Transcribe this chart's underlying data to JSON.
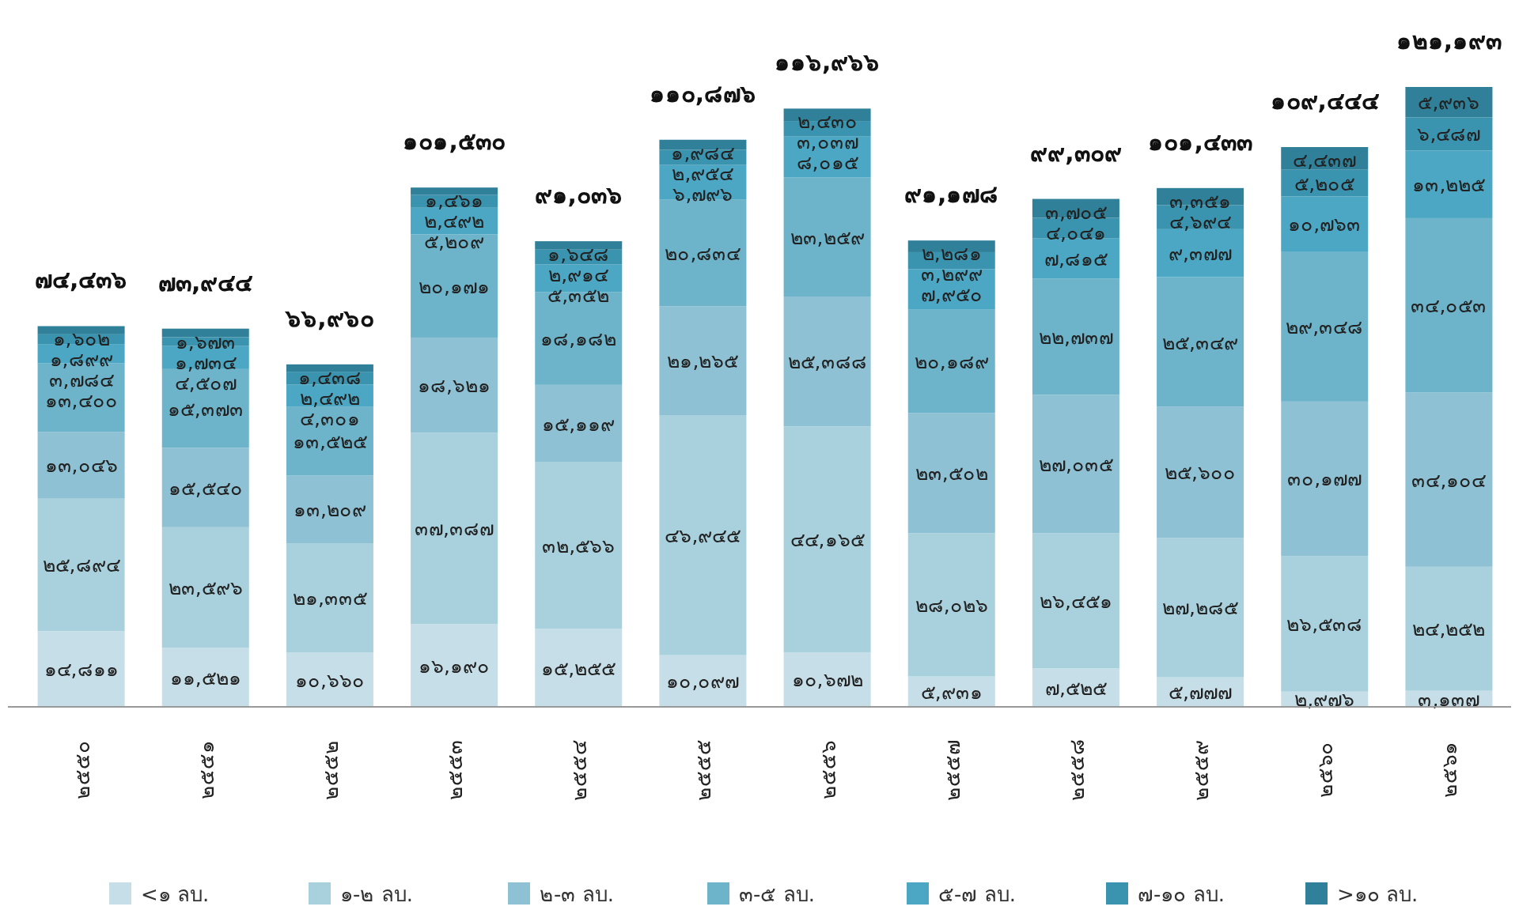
{
  "chart_data": {
    "type": "bar",
    "stacked": true,
    "legend": "bottom",
    "categories": [
      "๒๕๕๐",
      "๒๕๕๑",
      "๒๕๕๒",
      "๒๕๕๓",
      "๒๕๕๔",
      "๒๕๕๕",
      "๒๕๕๖",
      "๒๕๕๗",
      "๒๕๕๘",
      "๒๕๕๙",
      "๒๕๖๐",
      "๒๕๖๑"
    ],
    "series": [
      {
        "name": "<๑ ลบ.",
        "color": "#c6dee7",
        "values": [
          14811,
          11521,
          10660,
          16190,
          15255,
          10097,
          10672,
          5931,
          7525,
          5777,
          2976,
          3137
        ],
        "value_labels": [
          "๑๔,๘๑๑",
          "๑๑,๕๒๑",
          "๑๐,๖๖๐",
          "๑๖,๑๙๐",
          "๑๕,๒๕๕",
          "๑๐,๐๙๗",
          "๑๐,๖๗๒",
          "๕,๙๓๑",
          "๗,๕๒๕",
          "๕,๗๗๗",
          "๒,๙๗๖",
          "๓,๑๓๗"
        ]
      },
      {
        "name": "๑-๒ ลบ.",
        "color": "#a9d1dd",
        "values": [
          25894,
          23596,
          21335,
          37387,
          32566,
          46945,
          44165,
          28026,
          26451,
          27285,
          26538,
          24252
        ],
        "value_labels": [
          "๒๕,๘๙๔",
          "๒๓,๕๙๖",
          "๒๑,๓๓๕",
          "๓๗,๓๘๗",
          "๓๒,๕๖๖",
          "๔๖,๙๔๕",
          "๔๔,๑๖๕",
          "๒๘,๐๒๖",
          "๒๖,๔๕๑",
          "๒๗,๒๘๕",
          "๒๖,๕๓๘",
          "๒๔,๒๕๒"
        ]
      },
      {
        "name": "๒-๓ ลบ.",
        "color": "#8dc1d3",
        "values": [
          13046,
          15540,
          13209,
          18621,
          15119,
          21265,
          25388,
          23502,
          27035,
          25600,
          30177,
          34104
        ],
        "value_labels": [
          "๑๓,๐๔๖",
          "๑๕,๕๔๐",
          "๑๓,๒๐๙",
          "๑๘,๖๒๑",
          "๑๕,๑๑๙",
          "๒๑,๒๖๕",
          "๒๕,๓๘๘",
          "๒๓,๕๐๒",
          "๒๗,๐๓๕",
          "๒๕,๖๐๐",
          "๓๐,๑๗๗",
          "๓๔,๑๐๔"
        ]
      },
      {
        "name": "๓-๕ ลบ.",
        "color": "#6db4cb",
        "values": [
          13400,
          15373,
          13525,
          20171,
          18182,
          20834,
          23259,
          20189,
          22737,
          25349,
          29348,
          34053
        ],
        "value_labels": [
          "๑๓,๔๐๐",
          "๑๕,๓๗๓",
          "๑๓,๕๒๕",
          "๒๐,๑๗๑",
          "๑๘,๑๘๒",
          "๒๐,๘๓๔",
          "๒๓,๒๕๙",
          "๒๐,๑๘๙",
          "๒๒,๗๓๗",
          "๒๕,๓๔๙",
          "๒๙,๓๔๘",
          "๓๔,๐๕๓"
        ]
      },
      {
        "name": "๕-๗ ลบ.",
        "color": "#4ba7c3",
        "values": [
          3784,
          4507,
          4301,
          5209,
          5352,
          6796,
          8015,
          7950,
          7815,
          9377,
          10763,
          13225
        ],
        "value_labels": [
          "๓,๗๘๔",
          "๔,๕๐๗",
          "๔,๓๐๑",
          "๕,๒๐๙",
          "๕,๓๕๒",
          "๖,๗๙๖",
          "๘,๐๑๕",
          "๗,๙๕๐",
          "๗,๘๑๕",
          "๙,๓๗๗",
          "๑๐,๗๖๓",
          "๑๓,๒๒๕"
        ]
      },
      {
        "name": "๗-๑๐ ลบ.",
        "color": "#3b94af",
        "values": [
          1899,
          1734,
          2492,
          2492,
          2914,
          2954,
          3037,
          3299,
          4041,
          4694,
          5205,
          6487
        ],
        "value_labels": [
          "๑,๘๙๙",
          "๑,๗๓๔",
          "๒,๔๙๒",
          "๒,๔๙๒",
          "๒,๙๑๔",
          "๒,๙๕๔",
          "๓,๐๓๗",
          "๓,๒๙๙",
          "๔,๐๔๑",
          "๔,๖๙๔",
          "๕,๒๐๕",
          "๖,๔๘๗"
        ]
      },
      {
        "name": ">๑๐ ลบ.",
        "color": "#2f8098",
        "values": [
          1602,
          1673,
          1438,
          1461,
          1648,
          1984,
          2430,
          2281,
          3705,
          3351,
          4437,
          5936
        ],
        "value_labels": [
          "๑,๖๐๒",
          "๑,๖๗๓",
          "๑,๔๓๘",
          "๑,๔๖๑",
          "๑,๖๔๘",
          "๑,๙๘๔",
          "๒,๔๓๐",
          "๒,๒๘๑",
          "๓,๗๐๕",
          "๓,๓๕๑",
          "๔,๔๓๗",
          "๕,๙๓๖"
        ]
      }
    ],
    "totals": [
      "๗๔,๔๓๖",
      "๗๓,๙๔๔",
      "๖๖,๙๖๐",
      "๑๐๑,๕๓๐",
      "๙๑,๐๓๖",
      "๑๑๐,๘๗๖",
      "๑๑๖,๙๖๖",
      "๙๑,๑๗๘",
      "๙๙,๓๐๙",
      "๑๐๑,๔๓๓",
      "๑๐๙,๔๔๔",
      "๑๒๑,๑๙๓"
    ]
  }
}
